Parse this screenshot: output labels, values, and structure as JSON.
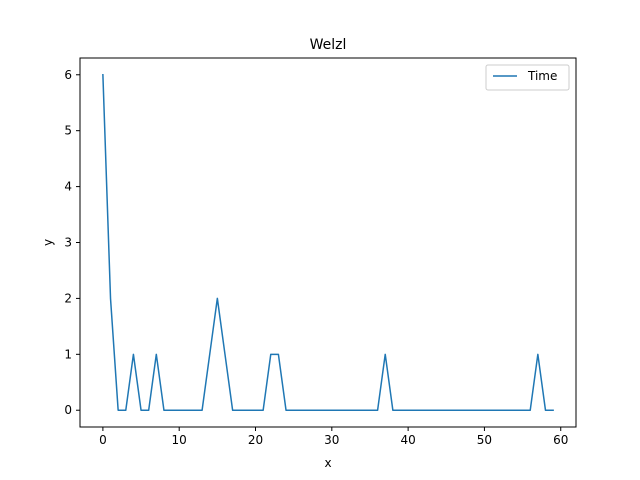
{
  "chart_data": {
    "type": "line",
    "title": "Welzl",
    "xlabel": "x",
    "ylabel": "y",
    "xlim": [
      -3,
      62
    ],
    "ylim": [
      -0.3,
      6.3
    ],
    "xticks": [
      0,
      10,
      20,
      30,
      40,
      50,
      60
    ],
    "yticks": [
      0,
      1,
      2,
      3,
      4,
      5,
      6
    ],
    "grid": false,
    "legend_position": "top-right",
    "series": [
      {
        "name": "Time",
        "color": "#1f77b4",
        "x": [
          0,
          1,
          2,
          3,
          4,
          5,
          6,
          7,
          8,
          9,
          10,
          11,
          12,
          13,
          14,
          15,
          16,
          17,
          18,
          19,
          20,
          21,
          22,
          23,
          24,
          25,
          26,
          27,
          28,
          29,
          30,
          31,
          32,
          33,
          34,
          35,
          36,
          37,
          38,
          39,
          40,
          41,
          42,
          43,
          44,
          45,
          46,
          47,
          48,
          49,
          50,
          51,
          52,
          53,
          54,
          55,
          56,
          57,
          58,
          59
        ],
        "values": [
          6,
          2,
          0,
          0,
          1,
          0,
          0,
          1,
          0,
          0,
          0,
          0,
          0,
          0,
          1,
          2,
          1,
          0,
          0,
          0,
          0,
          0,
          1,
          1,
          0,
          0,
          0,
          0,
          0,
          0,
          0,
          0,
          0,
          0,
          0,
          0,
          0,
          1,
          0,
          0,
          0,
          0,
          0,
          0,
          0,
          0,
          0,
          0,
          0,
          0,
          0,
          0,
          0,
          0,
          0,
          0,
          0,
          1,
          0,
          0
        ]
      }
    ]
  }
}
